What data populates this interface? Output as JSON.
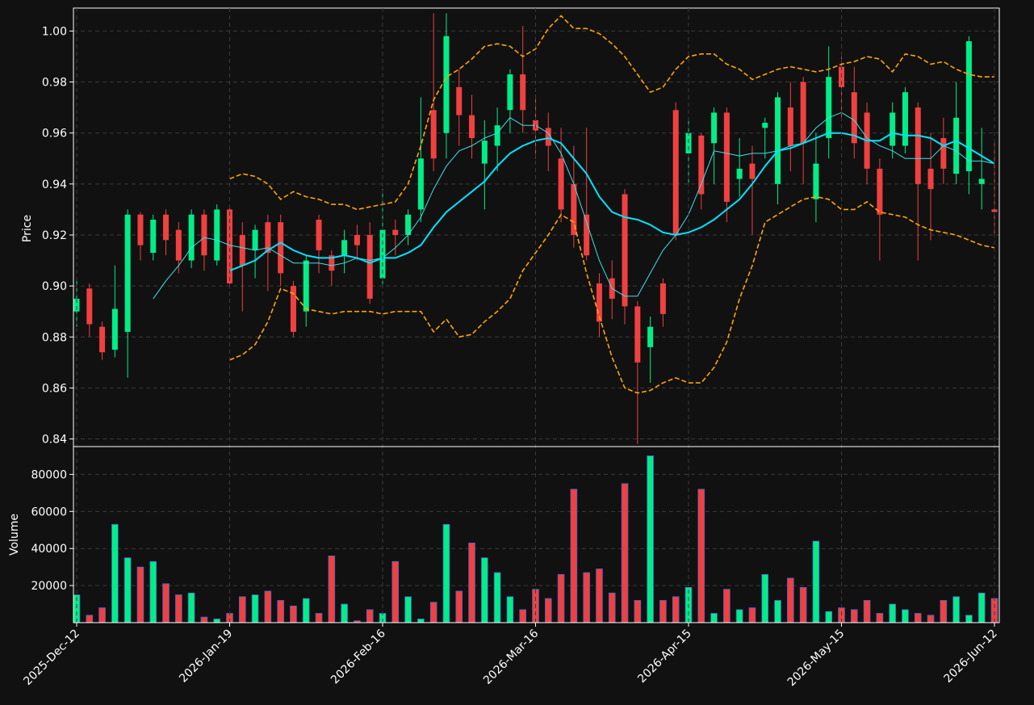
{
  "chart_data": [
    {
      "type": "candlestick",
      "ylabel": "Price",
      "up_color": "#00ee88",
      "down_color": "#f04040",
      "ylim": [
        0.837,
        1.009
      ],
      "yticks": [
        0.84,
        0.86,
        0.88,
        {
          "value": 0.9,
          "label": "0.90"
        },
        0.92,
        0.94,
        0.96,
        0.98,
        {
          "value": 1,
          "label": "1.00"
        }
      ],
      "grid": true,
      "open": [
        0.89,
        0.899,
        0.884,
        0.875,
        0.882,
        0.928,
        0.913,
        0.928,
        0.922,
        0.91,
        0.928,
        0.91,
        0.93,
        0.92,
        0.914,
        0.925,
        0.925,
        0.9,
        0.89,
        0.926,
        0.912,
        0.912,
        0.92,
        0.92,
        0.903,
        0.922,
        0.92,
        0.93,
        0.969,
        0.96,
        0.978,
        0.967,
        0.948,
        0.955,
        0.969,
        0.983,
        0.965,
        0.962,
        0.95,
        0.94,
        0.928,
        0.901,
        0.903,
        0.936,
        0.892,
        0.876,
        0.901,
        0.969,
        0.952,
        0.959,
        0.956,
        0.968,
        0.942,
        0.948,
        0.962,
        0.94,
        0.97,
        0.98,
        0.934,
        0.958,
        0.986,
        0.976,
        0.968,
        0.946,
        0.955,
        0.955,
        0.97,
        0.946,
        0.958,
        0.944,
        0.945,
        0.94,
        0.93
      ],
      "high": [
        0.902,
        0.901,
        0.886,
        0.908,
        0.93,
        0.929,
        0.928,
        0.93,
        0.925,
        0.93,
        0.93,
        0.932,
        0.932,
        0.925,
        0.924,
        0.928,
        0.928,
        0.902,
        0.912,
        0.928,
        0.914,
        0.922,
        0.924,
        0.925,
        0.938,
        0.926,
        0.93,
        0.974,
        1.007,
        1.007,
        0.985,
        0.975,
        0.965,
        0.97,
        0.985,
        1.002,
        0.975,
        0.968,
        0.962,
        0.955,
        0.962,
        0.905,
        0.91,
        0.938,
        0.894,
        0.888,
        0.903,
        0.972,
        0.966,
        0.96,
        0.97,
        0.97,
        0.958,
        0.955,
        0.966,
        0.976,
        0.98,
        0.982,
        0.96,
        0.994,
        0.99,
        0.986,
        0.972,
        0.95,
        0.972,
        0.978,
        0.972,
        0.96,
        0.966,
        0.98,
        0.998,
        0.962,
        0.956
      ],
      "low": [
        0.884,
        0.88,
        0.871,
        0.872,
        0.864,
        0.91,
        0.91,
        0.912,
        0.905,
        0.907,
        0.906,
        0.908,
        0.899,
        0.89,
        0.903,
        0.898,
        0.9,
        0.88,
        0.884,
        0.905,
        0.9,
        0.905,
        0.91,
        0.893,
        0.9,
        0.912,
        0.916,
        0.925,
        0.945,
        0.95,
        0.955,
        0.95,
        0.93,
        0.945,
        0.96,
        0.96,
        0.95,
        0.945,
        0.925,
        0.915,
        0.91,
        0.88,
        0.887,
        0.885,
        0.838,
        0.862,
        0.884,
        0.918,
        0.94,
        0.93,
        0.94,
        0.925,
        0.935,
        0.92,
        0.95,
        0.932,
        0.945,
        0.94,
        0.925,
        0.95,
        0.965,
        0.95,
        0.94,
        0.91,
        0.95,
        0.952,
        0.91,
        0.918,
        0.94,
        0.94,
        0.936,
        0.93,
        0.92
      ],
      "close": [
        0.895,
        0.885,
        0.874,
        0.891,
        0.928,
        0.916,
        0.926,
        0.918,
        0.91,
        0.928,
        0.912,
        0.93,
        0.901,
        0.908,
        0.922,
        0.913,
        0.905,
        0.882,
        0.91,
        0.914,
        0.906,
        0.918,
        0.916,
        0.895,
        0.922,
        0.92,
        0.928,
        0.95,
        0.95,
        0.998,
        0.967,
        0.958,
        0.957,
        0.963,
        0.983,
        0.969,
        0.961,
        0.955,
        0.93,
        0.92,
        0.912,
        0.886,
        0.895,
        0.892,
        0.87,
        0.884,
        0.889,
        0.92,
        0.96,
        0.936,
        0.968,
        0.933,
        0.946,
        0.942,
        0.964,
        0.974,
        0.955,
        0.956,
        0.948,
        0.982,
        0.978,
        0.956,
        0.946,
        0.928,
        0.968,
        0.976,
        0.94,
        0.938,
        0.946,
        0.966,
        0.996,
        0.942,
        0.929
      ],
      "series": [
        {
          "color": "#40e0e8",
          "width": 1,
          "style": "solid",
          "values": [
            null,
            null,
            null,
            null,
            null,
            null,
            0.895,
            0.902,
            0.908,
            0.915,
            0.919,
            0.918,
            0.916,
            0.915,
            0.914,
            0.915,
            0.912,
            0.909,
            0.909,
            0.909,
            0.908,
            0.909,
            0.911,
            0.91,
            0.911,
            0.915,
            0.92,
            0.927,
            0.938,
            0.947,
            0.953,
            0.955,
            0.958,
            0.96,
            0.966,
            0.963,
            0.963,
            0.96,
            0.952,
            0.94,
            0.925,
            0.91,
            0.899,
            0.896,
            0.896,
            0.905,
            0.914,
            0.92,
            0.928,
            0.94,
            0.953,
            0.952,
            0.951,
            0.952,
            0.952,
            0.953,
            0.955,
            0.956,
            0.962,
            0.966,
            0.968,
            0.965,
            0.958,
            0.955,
            0.953,
            0.95,
            0.95,
            0.95,
            0.955,
            0.953,
            0.949,
            0.949,
            0.948
          ]
        },
        {
          "color": "#00e5ff",
          "width": 2,
          "style": "solid",
          "values": [
            null,
            null,
            null,
            null,
            null,
            null,
            null,
            null,
            null,
            null,
            null,
            null,
            0.906,
            0.908,
            0.91,
            0.914,
            0.917,
            0.914,
            0.912,
            0.911,
            0.911,
            0.912,
            0.911,
            0.909,
            0.911,
            0.911,
            0.913,
            0.916,
            0.923,
            0.929,
            0.933,
            0.937,
            0.941,
            0.947,
            0.952,
            0.955,
            0.957,
            0.958,
            0.956,
            0.95,
            0.944,
            0.935,
            0.929,
            0.927,
            0.926,
            0.924,
            0.921,
            0.92,
            0.921,
            0.923,
            0.926,
            0.93,
            0.934,
            0.94,
            0.947,
            0.953,
            0.954,
            0.956,
            0.958,
            0.96,
            0.96,
            0.959,
            0.957,
            0.957,
            0.96,
            0.959,
            0.959,
            0.958,
            0.955,
            0.957,
            0.954,
            0.951,
            0.948
          ]
        },
        {
          "color": "#ffa500",
          "width": 1.6,
          "style": "dashed",
          "values": [
            null,
            null,
            null,
            null,
            null,
            null,
            null,
            null,
            null,
            null,
            null,
            null,
            0.942,
            0.944,
            0.943,
            0.94,
            0.934,
            0.937,
            0.935,
            0.934,
            0.932,
            0.932,
            0.93,
            0.931,
            0.932,
            0.933,
            0.94,
            0.955,
            0.973,
            0.982,
            0.985,
            0.989,
            0.994,
            0.995,
            0.994,
            0.99,
            0.993,
            1.001,
            1.006,
            1.001,
            1.001,
            0.999,
            0.995,
            0.99,
            0.983,
            0.976,
            0.978,
            0.985,
            0.99,
            0.991,
            0.991,
            0.987,
            0.985,
            0.981,
            0.983,
            0.985,
            0.986,
            0.985,
            0.984,
            0.985,
            0.987,
            0.988,
            0.99,
            0.989,
            0.984,
            0.991,
            0.99,
            0.987,
            0.988,
            0.985,
            0.983,
            0.982,
            0.982
          ]
        },
        {
          "color": "#ffa500",
          "width": 1.6,
          "style": "dashed",
          "values": [
            null,
            null,
            null,
            null,
            null,
            null,
            null,
            null,
            null,
            null,
            null,
            null,
            0.871,
            0.873,
            0.877,
            0.886,
            0.899,
            0.897,
            0.891,
            0.89,
            0.889,
            0.89,
            0.89,
            0.89,
            0.889,
            0.89,
            0.89,
            0.89,
            0.882,
            0.887,
            0.88,
            0.881,
            0.886,
            0.89,
            0.895,
            0.906,
            0.913,
            0.92,
            0.928,
            0.925,
            0.905,
            0.888,
            0.872,
            0.86,
            0.858,
            0.859,
            0.862,
            0.864,
            0.862,
            0.862,
            0.868,
            0.878,
            0.895,
            0.908,
            0.925,
            0.928,
            0.931,
            0.934,
            0.935,
            0.934,
            0.93,
            0.93,
            0.933,
            0.929,
            0.928,
            0.927,
            0.924,
            0.922,
            0.921,
            0.92,
            0.918,
            0.916,
            0.915
          ]
        }
      ]
    },
    {
      "type": "bar",
      "ylabel": "Volume",
      "edge_color": "#4a63c8",
      "ylim": [
        0,
        95000
      ],
      "yticks": [
        20000,
        40000,
        60000,
        80000
      ],
      "grid": true,
      "categories": [
        "2025-Dec-12",
        null,
        null,
        null,
        null,
        null,
        null,
        null,
        null,
        null,
        null,
        null,
        "2026-Jan-19",
        null,
        null,
        null,
        null,
        null,
        null,
        null,
        null,
        null,
        null,
        null,
        "2026-Feb-16",
        null,
        null,
        null,
        null,
        null,
        null,
        null,
        null,
        null,
        null,
        null,
        "2026-Mar-16",
        null,
        null,
        null,
        null,
        null,
        null,
        null,
        null,
        null,
        null,
        null,
        "2026-Apr-15",
        null,
        null,
        null,
        null,
        null,
        null,
        null,
        null,
        null,
        null,
        null,
        "2026-May-15",
        null,
        null,
        null,
        null,
        null,
        null,
        null,
        null,
        null,
        null,
        null,
        "2026-Jun-12"
      ],
      "values": [
        15000,
        4000,
        8000,
        53000,
        35000,
        30000,
        33000,
        21000,
        15000,
        16000,
        3000,
        2000,
        5000,
        14000,
        15000,
        17000,
        12000,
        9000,
        13000,
        5000,
        36000,
        10000,
        1000,
        7000,
        5000,
        33000,
        14000,
        2000,
        11000,
        53000,
        17000,
        43000,
        35000,
        27000,
        14000,
        7000,
        18000,
        13000,
        26000,
        72000,
        27000,
        29000,
        16000,
        75000,
        12000,
        90000,
        12000,
        14000,
        19000,
        72000,
        5000,
        18000,
        7000,
        8000,
        26000,
        12000,
        24000,
        19000,
        44000,
        6000,
        8000,
        7000,
        12000,
        5000,
        10000,
        7000,
        5000,
        4000,
        12000,
        14000,
        4000,
        16000,
        13000
      ]
    }
  ]
}
